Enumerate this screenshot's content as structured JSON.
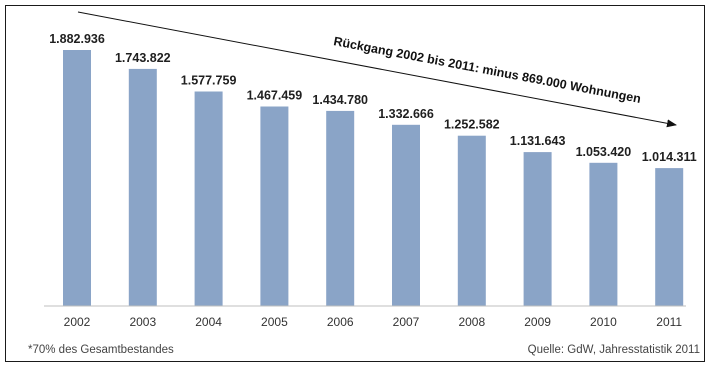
{
  "chart_data": {
    "type": "bar",
    "categories": [
      "2002",
      "2003",
      "2004",
      "2005",
      "2006",
      "2007",
      "2008",
      "2009",
      "2010",
      "2011"
    ],
    "values": [
      1882936,
      1743822,
      1577759,
      1467459,
      1434780,
      1332666,
      1252582,
      1131643,
      1053420,
      1014311
    ],
    "value_labels": [
      "1.882.936",
      "1.743.822",
      "1.577.759",
      "1.467.459",
      "1.434.780",
      "1.332.666",
      "1.252.582",
      "1.131.643",
      "1.053.420",
      "1.014.311"
    ],
    "annotation": "Rückgang 2002 bis 2011: minus 869.000 Wohnungen",
    "bar_color": "#8aa4c7",
    "ylim": [
      0,
      1882936
    ],
    "grid": false,
    "legend": "none"
  },
  "footnote": "*70% des Gesamtbestandes",
  "source": "Quelle: GdW, Jahresstatistik 2011"
}
